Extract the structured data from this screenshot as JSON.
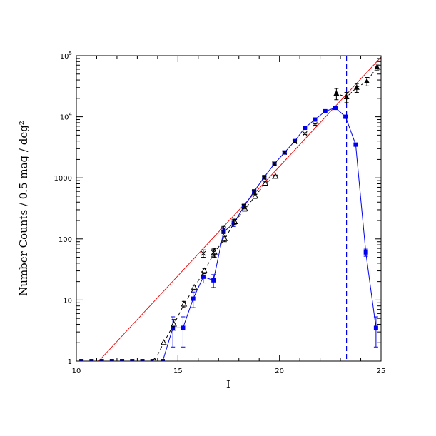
{
  "chart_data": {
    "type": "scatter",
    "xlabel": "I",
    "ylabel": "Number Counts / 0.5 mag / deg²",
    "xlim": [
      10,
      25
    ],
    "ylim": [
      1,
      100000
    ],
    "y_scale": "log",
    "x_ticks": [
      10,
      15,
      20,
      25
    ],
    "x_tick_labels": [
      "10",
      "15",
      "20",
      "25"
    ],
    "y_ticks": [
      1,
      10,
      100,
      1000,
      10000,
      100000
    ],
    "y_tick_labels": [
      {
        "base": "1",
        "exp": ""
      },
      {
        "base": "10",
        "exp": ""
      },
      {
        "base": "100",
        "exp": ""
      },
      {
        "base": "1000",
        "exp": ""
      },
      {
        "base": "10",
        "exp": "4"
      },
      {
        "base": "10",
        "exp": "5"
      }
    ],
    "colors": {
      "blue": "#0000ee",
      "red": "#ee0000",
      "black": "#000000"
    },
    "series": [
      {
        "marker": "filled-square",
        "line": "solid",
        "color": "#0000ee",
        "x": [
          10.25,
          10.75,
          11.25,
          11.75,
          12.25,
          12.75,
          13.25,
          13.75,
          14.25,
          14.75,
          15.25,
          15.75,
          16.25,
          16.75,
          17.25,
          17.75,
          18.25,
          18.75,
          19.25,
          19.75,
          20.25,
          20.75,
          21.25,
          21.75,
          22.25,
          22.75,
          23.25,
          23.75,
          24.25,
          24.75
        ],
        "y": [
          1,
          1,
          1,
          1,
          1,
          1,
          1,
          1,
          1,
          3.5,
          3.5,
          10.5,
          24,
          21,
          130,
          180,
          340,
          600,
          1030,
          1700,
          2600,
          4000,
          6600,
          9000,
          12300,
          14000,
          10000,
          3500,
          60,
          3.5
        ],
        "y_err": [
          0,
          0,
          0,
          0,
          0,
          0,
          0,
          0,
          0,
          1.8,
          1.8,
          3,
          5,
          5,
          15,
          20,
          30,
          40,
          50,
          70,
          90,
          100,
          150,
          200,
          250,
          300,
          250,
          150,
          8,
          1.8
        ]
      },
      {
        "marker": "open-triangle",
        "line": "dashed",
        "color": "#000000",
        "x": [
          13.85,
          14.3,
          14.8,
          15.3,
          15.8,
          16.3,
          16.8,
          17.3,
          17.8,
          18.3,
          18.8,
          19.3,
          19.8
        ],
        "y": [
          1,
          2,
          4,
          8.5,
          16,
          30,
          60,
          100,
          190,
          310,
          500,
          810,
          1050
        ],
        "y_err": [
          0,
          0,
          0.8,
          1,
          1.5,
          3,
          10,
          10,
          20,
          25,
          40,
          50,
          60
        ]
      },
      {
        "marker": "cross",
        "line": "none",
        "color": "#000000",
        "x": [
          16.25,
          16.75,
          17.25,
          17.75,
          18.25,
          18.75,
          19.25,
          19.75,
          20.25,
          20.75,
          21.25,
          21.75
        ],
        "y": [
          58,
          60,
          145,
          190,
          340,
          580,
          1000,
          1700,
          2600,
          3900,
          5300,
          7500
        ],
        "y_err": [
          8,
          8,
          15,
          20,
          30,
          40,
          50,
          70,
          90,
          100,
          150,
          200
        ]
      },
      {
        "marker": "filled-triangle",
        "line": "dash-dot",
        "color": "#000000",
        "x": [
          22.8,
          23.3,
          23.8,
          24.3,
          24.8
        ],
        "y": [
          24000,
          21000,
          30000,
          38000,
          65000
        ],
        "y_err": [
          5000,
          4000,
          5000,
          6000,
          8000
        ]
      }
    ],
    "reference_line": {
      "color": "#ee0000",
      "x": [
        11.1,
        25
      ],
      "y": [
        1,
        95000
      ]
    },
    "vertical_line": {
      "x": 23.3,
      "color": "#0000ee",
      "style": "dashed"
    }
  }
}
